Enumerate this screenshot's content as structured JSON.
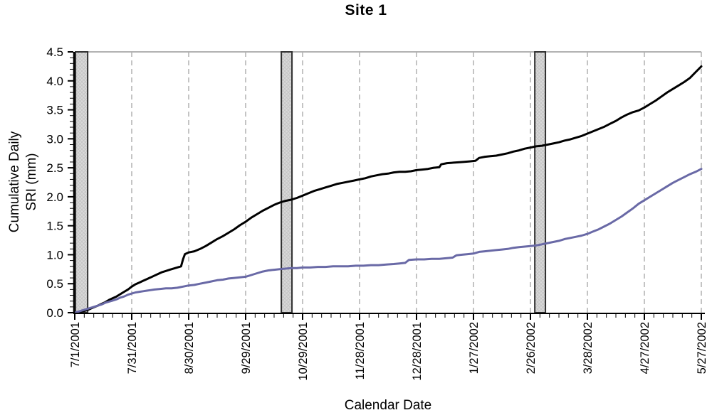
{
  "title": "Site 1",
  "chart": {
    "ylabel_line1": "Cumulative Daily",
    "ylabel_line2": "SRI (mm)",
    "xlabel": "Calendar Date"
  },
  "colors": {
    "background": "#ffffff",
    "axis": "#000000",
    "frame_top": "#999999",
    "grid": "#b0b0b0",
    "bar_fill": "#d9d9d9",
    "bar_hatch": "#c2c2c2",
    "bar_border": "#2f2f2f",
    "series_black": "#000000",
    "series_purple": "#6969a6",
    "text": "#000000"
  },
  "chart_data": {
    "type": "line",
    "title": "Site 1",
    "xlabel": "Calendar Date",
    "ylabel": "Cumulative Daily SRI (mm)",
    "legend": "none",
    "grid": "vertical dashed gridlines at each date tick",
    "x_axis": {
      "unit": "days since 7/1/2001",
      "xlim_days": [
        0,
        330
      ],
      "tick_days": [
        0,
        30,
        60,
        90,
        120,
        150,
        180,
        210,
        240,
        270,
        300,
        330
      ],
      "tick_labels": [
        "7/1/2001",
        "7/31/2001",
        "8/30/2001",
        "9/29/2001",
        "10/29/2001",
        "11/28/2001",
        "12/28/2001",
        "1/27/2002",
        "2/26/2002",
        "3/28/2002",
        "4/27/2002",
        "5/27/2002"
      ],
      "minor_tick_step_days": 5
    },
    "y_axis": {
      "ylim": [
        0,
        4.5
      ],
      "ticks": [
        0,
        0.5,
        1.0,
        1.5,
        2.0,
        2.5,
        3.0,
        3.5,
        4.0,
        4.5
      ],
      "tick_labels": [
        "0.0",
        "0.5",
        "1.0",
        "1.5",
        "2.0",
        "2.5",
        "3.0",
        "3.5",
        "4.0",
        "4.5"
      ],
      "minor_tick_step": 0.1
    },
    "event_bars": {
      "description": "gray hatched vertical bars spanning full plot height",
      "day_ranges": [
        [
          0.4,
          6.8
        ],
        [
          108.8,
          114.4
        ],
        [
          242.3,
          247.9
        ]
      ]
    },
    "series": [
      {
        "name": "upper-black-line",
        "color": "#000000",
        "points": [
          [
            0,
            0
          ],
          [
            2,
            0.01
          ],
          [
            5,
            0.03
          ],
          [
            7,
            0.05
          ],
          [
            9,
            0.08
          ],
          [
            12,
            0.12
          ],
          [
            14,
            0.15
          ],
          [
            16,
            0.18
          ],
          [
            18,
            0.22
          ],
          [
            20,
            0.25
          ],
          [
            22,
            0.28
          ],
          [
            24,
            0.32
          ],
          [
            26,
            0.36
          ],
          [
            28,
            0.4
          ],
          [
            30,
            0.45
          ],
          [
            32,
            0.49
          ],
          [
            34,
            0.52
          ],
          [
            36,
            0.55
          ],
          [
            38,
            0.58
          ],
          [
            40,
            0.61
          ],
          [
            42,
            0.64
          ],
          [
            44,
            0.67
          ],
          [
            46,
            0.7
          ],
          [
            48,
            0.72
          ],
          [
            50,
            0.74
          ],
          [
            53,
            0.77
          ],
          [
            56,
            0.8
          ],
          [
            57,
            0.92
          ],
          [
            58,
            1.01
          ],
          [
            60,
            1.04
          ],
          [
            63,
            1.06
          ],
          [
            66,
            1.1
          ],
          [
            69,
            1.15
          ],
          [
            72,
            1.21
          ],
          [
            75,
            1.27
          ],
          [
            78,
            1.32
          ],
          [
            81,
            1.38
          ],
          [
            84,
            1.44
          ],
          [
            87,
            1.51
          ],
          [
            90,
            1.57
          ],
          [
            93,
            1.64
          ],
          [
            96,
            1.7
          ],
          [
            99,
            1.76
          ],
          [
            102,
            1.81
          ],
          [
            105,
            1.86
          ],
          [
            108,
            1.9
          ],
          [
            111,
            1.93
          ],
          [
            114,
            1.95
          ],
          [
            117,
            1.98
          ],
          [
            120,
            2.02
          ],
          [
            123,
            2.06
          ],
          [
            126,
            2.1
          ],
          [
            129,
            2.13
          ],
          [
            132,
            2.16
          ],
          [
            135,
            2.19
          ],
          [
            138,
            2.22
          ],
          [
            141,
            2.24
          ],
          [
            144,
            2.26
          ],
          [
            147,
            2.28
          ],
          [
            150,
            2.3
          ],
          [
            153,
            2.32
          ],
          [
            156,
            2.35
          ],
          [
            159,
            2.37
          ],
          [
            162,
            2.39
          ],
          [
            165,
            2.4
          ],
          [
            168,
            2.42
          ],
          [
            171,
            2.43
          ],
          [
            174,
            2.43
          ],
          [
            177,
            2.44
          ],
          [
            180,
            2.46
          ],
          [
            183,
            2.47
          ],
          [
            186,
            2.48
          ],
          [
            189,
            2.5
          ],
          [
            192,
            2.51
          ],
          [
            193,
            2.56
          ],
          [
            196,
            2.58
          ],
          [
            200,
            2.59
          ],
          [
            204,
            2.6
          ],
          [
            208,
            2.61
          ],
          [
            211,
            2.62
          ],
          [
            213,
            2.67
          ],
          [
            216,
            2.69
          ],
          [
            219,
            2.7
          ],
          [
            222,
            2.71
          ],
          [
            225,
            2.73
          ],
          [
            228,
            2.75
          ],
          [
            231,
            2.78
          ],
          [
            234,
            2.8
          ],
          [
            237,
            2.83
          ],
          [
            240,
            2.85
          ],
          [
            243,
            2.87
          ],
          [
            246,
            2.88
          ],
          [
            249,
            2.9
          ],
          [
            252,
            2.92
          ],
          [
            255,
            2.94
          ],
          [
            258,
            2.97
          ],
          [
            261,
            2.99
          ],
          [
            264,
            3.02
          ],
          [
            267,
            3.05
          ],
          [
            270,
            3.09
          ],
          [
            273,
            3.13
          ],
          [
            276,
            3.17
          ],
          [
            279,
            3.21
          ],
          [
            282,
            3.26
          ],
          [
            285,
            3.31
          ],
          [
            288,
            3.37
          ],
          [
            291,
            3.42
          ],
          [
            294,
            3.46
          ],
          [
            297,
            3.49
          ],
          [
            300,
            3.54
          ],
          [
            303,
            3.6
          ],
          [
            306,
            3.66
          ],
          [
            309,
            3.73
          ],
          [
            312,
            3.8
          ],
          [
            315,
            3.86
          ],
          [
            318,
            3.92
          ],
          [
            321,
            3.98
          ],
          [
            324,
            4.05
          ],
          [
            327,
            4.15
          ],
          [
            330,
            4.25
          ]
        ]
      },
      {
        "name": "lower-purple-line",
        "color": "#6969a6",
        "points": [
          [
            0,
            0
          ],
          [
            2,
            0.02
          ],
          [
            5,
            0.05
          ],
          [
            7,
            0.07
          ],
          [
            9,
            0.09
          ],
          [
            12,
            0.12
          ],
          [
            14,
            0.14
          ],
          [
            16,
            0.17
          ],
          [
            18,
            0.19
          ],
          [
            20,
            0.21
          ],
          [
            22,
            0.23
          ],
          [
            24,
            0.26
          ],
          [
            26,
            0.28
          ],
          [
            28,
            0.31
          ],
          [
            30,
            0.33
          ],
          [
            32,
            0.35
          ],
          [
            34,
            0.36
          ],
          [
            36,
            0.37
          ],
          [
            38,
            0.38
          ],
          [
            40,
            0.39
          ],
          [
            42,
            0.4
          ],
          [
            45,
            0.41
          ],
          [
            48,
            0.42
          ],
          [
            51,
            0.42
          ],
          [
            54,
            0.43
          ],
          [
            57,
            0.45
          ],
          [
            60,
            0.47
          ],
          [
            63,
            0.48
          ],
          [
            66,
            0.5
          ],
          [
            69,
            0.52
          ],
          [
            72,
            0.54
          ],
          [
            75,
            0.56
          ],
          [
            78,
            0.57
          ],
          [
            81,
            0.59
          ],
          [
            84,
            0.6
          ],
          [
            87,
            0.61
          ],
          [
            90,
            0.62
          ],
          [
            93,
            0.65
          ],
          [
            96,
            0.68
          ],
          [
            99,
            0.71
          ],
          [
            102,
            0.73
          ],
          [
            105,
            0.74
          ],
          [
            108,
            0.75
          ],
          [
            111,
            0.76
          ],
          [
            114,
            0.77
          ],
          [
            117,
            0.77
          ],
          [
            120,
            0.78
          ],
          [
            124,
            0.78
          ],
          [
            128,
            0.79
          ],
          [
            132,
            0.79
          ],
          [
            136,
            0.8
          ],
          [
            140,
            0.8
          ],
          [
            144,
            0.8
          ],
          [
            148,
            0.81
          ],
          [
            152,
            0.81
          ],
          [
            156,
            0.82
          ],
          [
            160,
            0.82
          ],
          [
            164,
            0.83
          ],
          [
            168,
            0.84
          ],
          [
            171,
            0.85
          ],
          [
            174,
            0.86
          ],
          [
            176,
            0.91
          ],
          [
            180,
            0.92
          ],
          [
            184,
            0.92
          ],
          [
            188,
            0.93
          ],
          [
            192,
            0.93
          ],
          [
            196,
            0.94
          ],
          [
            199,
            0.95
          ],
          [
            201,
            0.99
          ],
          [
            204,
            1.0
          ],
          [
            207,
            1.01
          ],
          [
            210,
            1.02
          ],
          [
            213,
            1.05
          ],
          [
            216,
            1.06
          ],
          [
            219,
            1.07
          ],
          [
            222,
            1.08
          ],
          [
            225,
            1.09
          ],
          [
            228,
            1.1
          ],
          [
            231,
            1.12
          ],
          [
            234,
            1.13
          ],
          [
            237,
            1.14
          ],
          [
            240,
            1.15
          ],
          [
            243,
            1.16
          ],
          [
            246,
            1.18
          ],
          [
            249,
            1.2
          ],
          [
            252,
            1.22
          ],
          [
            255,
            1.24
          ],
          [
            258,
            1.27
          ],
          [
            261,
            1.29
          ],
          [
            264,
            1.31
          ],
          [
            267,
            1.33
          ],
          [
            270,
            1.36
          ],
          [
            273,
            1.4
          ],
          [
            276,
            1.44
          ],
          [
            279,
            1.49
          ],
          [
            282,
            1.54
          ],
          [
            285,
            1.6
          ],
          [
            288,
            1.66
          ],
          [
            291,
            1.73
          ],
          [
            294,
            1.8
          ],
          [
            297,
            1.88
          ],
          [
            300,
            1.94
          ],
          [
            303,
            2.0
          ],
          [
            306,
            2.06
          ],
          [
            309,
            2.12
          ],
          [
            312,
            2.18
          ],
          [
            315,
            2.24
          ],
          [
            318,
            2.29
          ],
          [
            321,
            2.34
          ],
          [
            324,
            2.39
          ],
          [
            327,
            2.43
          ],
          [
            330,
            2.48
          ]
        ]
      }
    ]
  }
}
